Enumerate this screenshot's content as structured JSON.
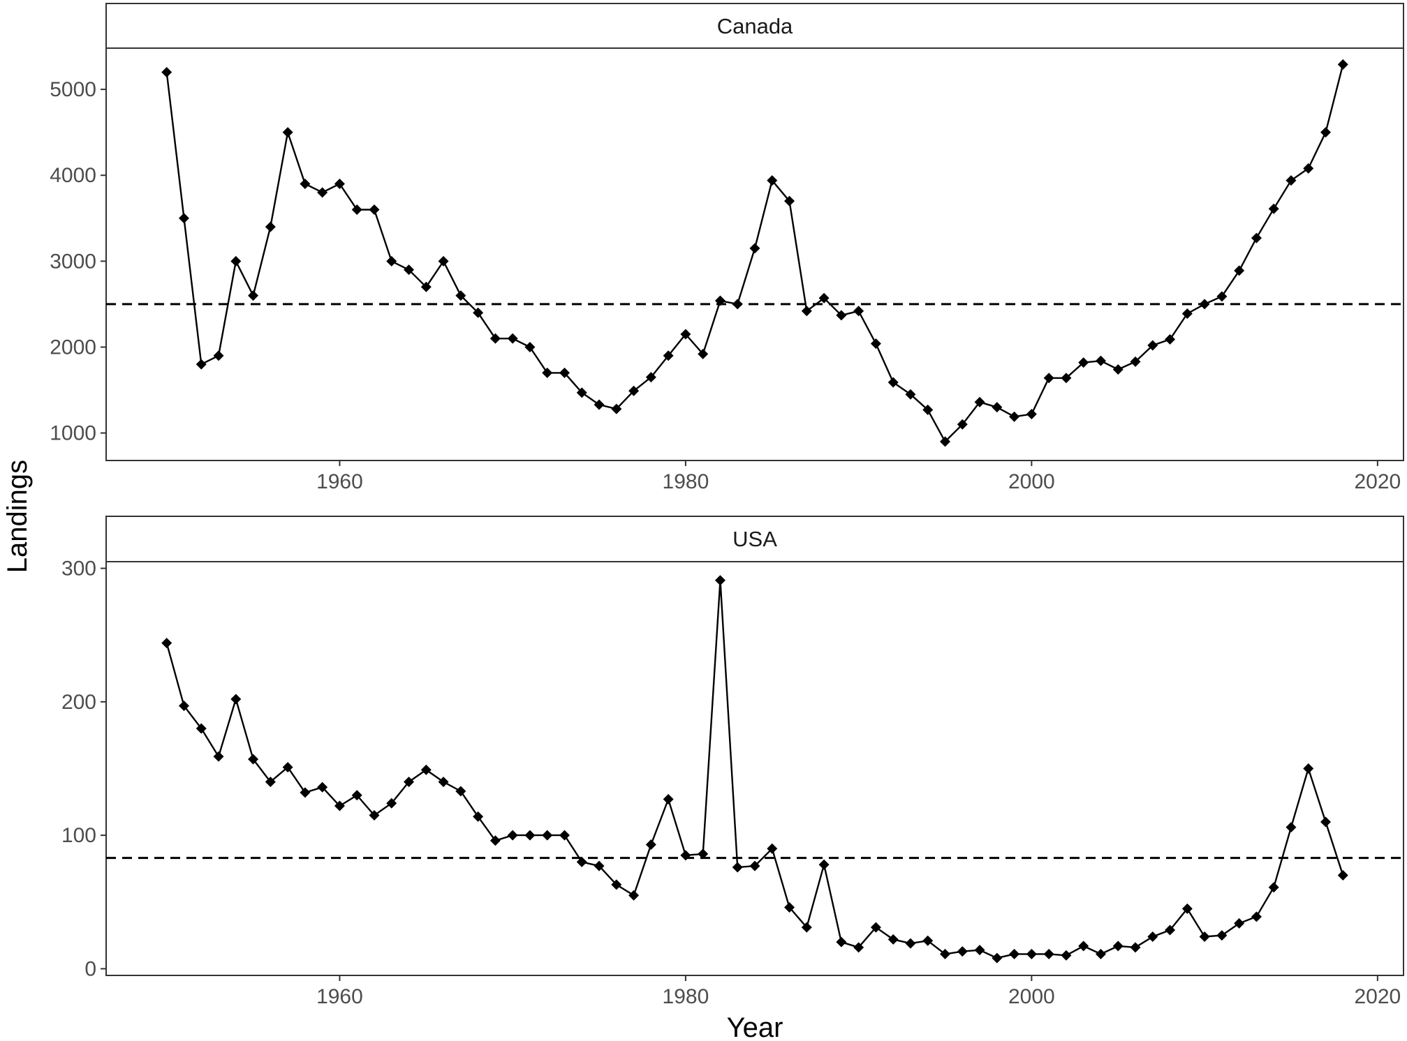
{
  "chart_data": {
    "type": "line",
    "xlabel": "Year",
    "ylabel": "Landings",
    "xlim": [
      1946.5,
      2021.5
    ],
    "x_ticks": [
      1960,
      1980,
      2000,
      2020
    ],
    "x_tick_labels": [
      "1960",
      "1980",
      "2000",
      "2020"
    ],
    "style": {
      "line_color": "#000000",
      "marker": "diamond",
      "reference_line": "dashed"
    },
    "panels": [
      {
        "strip": "Canada",
        "ylim": [
          680,
          5480
        ],
        "y_ticks": [
          1000,
          2000,
          3000,
          4000,
          5000
        ],
        "y_tick_labels": [
          "1000",
          "2000",
          "3000",
          "4000",
          "5000"
        ],
        "reference_value": 2500,
        "x": [
          1950,
          1951,
          1952,
          1953,
          1954,
          1955,
          1956,
          1957,
          1958,
          1959,
          1960,
          1961,
          1962,
          1963,
          1964,
          1965,
          1966,
          1967,
          1968,
          1969,
          1970,
          1971,
          1972,
          1973,
          1974,
          1975,
          1976,
          1977,
          1978,
          1979,
          1980,
          1981,
          1982,
          1983,
          1984,
          1985,
          1986,
          1987,
          1988,
          1989,
          1990,
          1991,
          1992,
          1993,
          1994,
          1995,
          1996,
          1997,
          1998,
          1999,
          2000,
          2001,
          2002,
          2003,
          2004,
          2005,
          2006,
          2007,
          2008,
          2009,
          2010,
          2011,
          2012,
          2013,
          2014,
          2015,
          2016,
          2017,
          2018
        ],
        "values": [
          5200,
          3500,
          1800,
          1900,
          3000,
          2600,
          3400,
          4500,
          3900,
          3800,
          3900,
          3600,
          3600,
          3000,
          2900,
          2700,
          3000,
          2600,
          2400,
          2100,
          2100,
          2000,
          1700,
          1700,
          1470,
          1330,
          1280,
          1490,
          1650,
          1900,
          2150,
          1920,
          2540,
          2500,
          3150,
          3940,
          3700,
          2420,
          2570,
          2370,
          2420,
          2040,
          1590,
          1450,
          1270,
          900,
          1100,
          1360,
          1300,
          1190,
          1220,
          1640,
          1640,
          1820,
          1840,
          1740,
          1830,
          2020,
          2090,
          2390,
          2500,
          2590,
          2890,
          3270,
          3610,
          3940,
          4080,
          4500,
          5290
        ]
      },
      {
        "strip": "USA",
        "ylim": [
          -5,
          305
        ],
        "y_ticks": [
          0,
          100,
          200,
          300
        ],
        "y_tick_labels": [
          "0",
          "100",
          "200",
          "300"
        ],
        "reference_value": 83,
        "x": [
          1950,
          1951,
          1952,
          1953,
          1954,
          1955,
          1956,
          1957,
          1958,
          1959,
          1960,
          1961,
          1962,
          1963,
          1964,
          1965,
          1966,
          1967,
          1968,
          1969,
          1970,
          1971,
          1972,
          1973,
          1974,
          1975,
          1976,
          1977,
          1978,
          1979,
          1980,
          1981,
          1982,
          1983,
          1984,
          1985,
          1986,
          1987,
          1988,
          1989,
          1990,
          1991,
          1992,
          1993,
          1994,
          1995,
          1996,
          1997,
          1998,
          1999,
          2000,
          2001,
          2002,
          2003,
          2004,
          2005,
          2006,
          2007,
          2008,
          2009,
          2010,
          2011,
          2012,
          2013,
          2014,
          2015,
          2016,
          2017,
          2018
        ],
        "values": [
          244,
          197,
          180,
          159,
          202,
          157,
          140,
          151,
          132,
          136,
          122,
          130,
          115,
          124,
          140,
          149,
          140,
          133,
          114,
          96,
          100,
          100,
          100,
          100,
          80,
          77,
          63,
          55,
          93,
          127,
          85,
          86,
          291,
          76,
          77,
          90,
          46,
          31,
          78,
          20,
          16,
          31,
          22,
          19,
          21,
          11,
          13,
          14,
          8,
          11,
          11,
          11,
          10,
          17,
          11,
          17,
          16,
          24,
          29,
          45,
          24,
          25,
          34,
          39,
          61,
          106,
          150,
          110,
          70
        ]
      }
    ]
  }
}
